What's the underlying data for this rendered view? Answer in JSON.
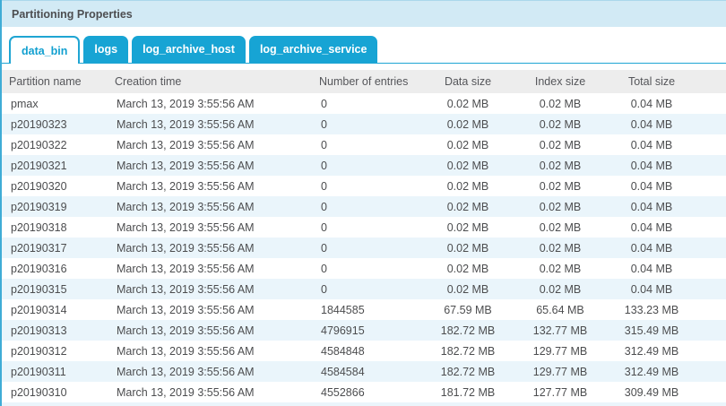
{
  "panel": {
    "title": "Partitioning Properties"
  },
  "tabs": [
    {
      "label": "data_bin",
      "active": true
    },
    {
      "label": "logs",
      "active": false
    },
    {
      "label": "log_archive_host",
      "active": false
    },
    {
      "label": "log_archive_service",
      "active": false
    }
  ],
  "table": {
    "columns": [
      "Partition name",
      "Creation time",
      "Number of entries",
      "Data size",
      "Index size",
      "Total size"
    ],
    "column_keys": [
      "partition-name",
      "creation-time",
      "number-of-entries",
      "data-size",
      "index-size",
      "total-size"
    ],
    "rows": [
      [
        "pmax",
        "March 13, 2019 3:55:56 AM",
        "0",
        "0.02 MB",
        "0.02 MB",
        "0.04 MB"
      ],
      [
        "p20190323",
        "March 13, 2019 3:55:56 AM",
        "0",
        "0.02 MB",
        "0.02 MB",
        "0.04 MB"
      ],
      [
        "p20190322",
        "March 13, 2019 3:55:56 AM",
        "0",
        "0.02 MB",
        "0.02 MB",
        "0.04 MB"
      ],
      [
        "p20190321",
        "March 13, 2019 3:55:56 AM",
        "0",
        "0.02 MB",
        "0.02 MB",
        "0.04 MB"
      ],
      [
        "p20190320",
        "March 13, 2019 3:55:56 AM",
        "0",
        "0.02 MB",
        "0.02 MB",
        "0.04 MB"
      ],
      [
        "p20190319",
        "March 13, 2019 3:55:56 AM",
        "0",
        "0.02 MB",
        "0.02 MB",
        "0.04 MB"
      ],
      [
        "p20190318",
        "March 13, 2019 3:55:56 AM",
        "0",
        "0.02 MB",
        "0.02 MB",
        "0.04 MB"
      ],
      [
        "p20190317",
        "March 13, 2019 3:55:56 AM",
        "0",
        "0.02 MB",
        "0.02 MB",
        "0.04 MB"
      ],
      [
        "p20190316",
        "March 13, 2019 3:55:56 AM",
        "0",
        "0.02 MB",
        "0.02 MB",
        "0.04 MB"
      ],
      [
        "p20190315",
        "March 13, 2019 3:55:56 AM",
        "0",
        "0.02 MB",
        "0.02 MB",
        "0.04 MB"
      ],
      [
        "p20190314",
        "March 13, 2019 3:55:56 AM",
        "1844585",
        "67.59 MB",
        "65.64 MB",
        "133.23 MB"
      ],
      [
        "p20190313",
        "March 13, 2019 3:55:56 AM",
        "4796915",
        "182.72 MB",
        "132.77 MB",
        "315.49 MB"
      ],
      [
        "p20190312",
        "March 13, 2019 3:55:56 AM",
        "4584848",
        "182.72 MB",
        "129.77 MB",
        "312.49 MB"
      ],
      [
        "p20190311",
        "March 13, 2019 3:55:56 AM",
        "4584584",
        "182.72 MB",
        "129.77 MB",
        "312.49 MB"
      ],
      [
        "p20190310",
        "March 13, 2019 3:55:56 AM",
        "4552866",
        "181.72 MB",
        "127.77 MB",
        "309.49 MB"
      ]
    ]
  },
  "colors": {
    "accent_blue": "#17a4d4",
    "active_tab_text": "#12a0d0",
    "title_bar_bg": "#d2eaf5",
    "alt_row_bg": "#eaf5fb",
    "header_bg": "#ededed",
    "text": "#4c4d4f"
  }
}
